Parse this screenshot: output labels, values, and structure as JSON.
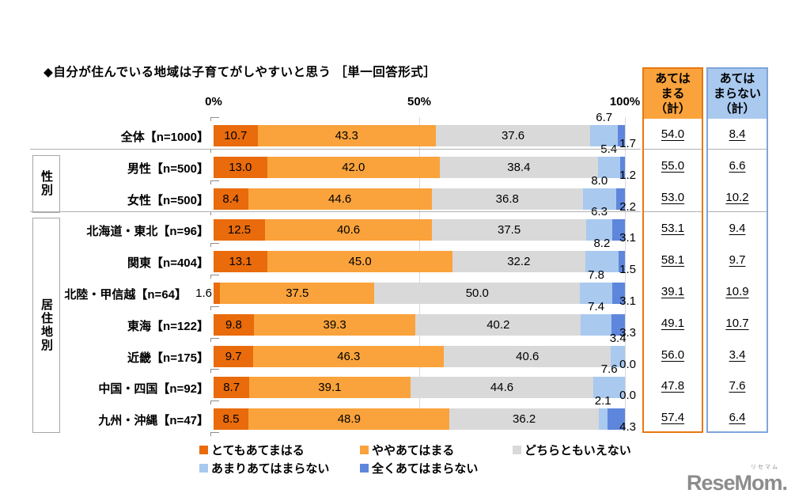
{
  "title": "◆自分が住んでいる地域は子育てがしやすいと思う ［単一回答形式］",
  "axis": {
    "ticks": [
      "0%",
      "50%",
      "100%"
    ]
  },
  "legend": [
    {
      "label": "とてもあてまはる"
    },
    {
      "label": "ややあてはまる"
    },
    {
      "label": "どちらともいえない"
    },
    {
      "label": "あまりあてはまらない"
    },
    {
      "label": "全くあてはまらない"
    }
  ],
  "summary_columns": [
    {
      "title_lines": [
        "あては",
        "まる",
        "（計）"
      ],
      "key": "agree"
    },
    {
      "title_lines": [
        "あては",
        "まらない",
        "（計）"
      ],
      "key": "disagree"
    }
  ],
  "colors": {
    "segments": [
      "#E96B0C",
      "#FAA33C",
      "#D9D9D9",
      "#A9C9EF",
      "#5E86DC"
    ],
    "agree_fill": "#FAA33C",
    "agree_border": "#E8780F",
    "disagree_fill": "#A9C9EF",
    "disagree_border": "#7EA6DB"
  },
  "chart_data": {
    "type": "bar",
    "stacked": true,
    "orientation": "horizontal",
    "unit": "%",
    "xlim": [
      0,
      100
    ],
    "x_axis_ticks": [
      "0%",
      "50%",
      "100%"
    ],
    "series_labels": [
      "とてもあてまはる",
      "ややあてはまる",
      "どちらともいえない",
      "あまりあてはまらない",
      "全くあてはまらない"
    ],
    "groups": [
      {
        "label": "",
        "rows": [
          {
            "label": "全体【n=1000】",
            "values": [
              10.7,
              43.3,
              37.6,
              6.7,
              1.7
            ],
            "totals": {
              "agree": "54.0",
              "disagree": "8.4"
            }
          }
        ]
      },
      {
        "label": "性別",
        "rows": [
          {
            "label": "男性【n=500】",
            "values": [
              13.0,
              42.0,
              38.4,
              5.4,
              1.2
            ],
            "totals": {
              "agree": "55.0",
              "disagree": "6.6"
            }
          },
          {
            "label": "女性【n=500】",
            "values": [
              8.4,
              44.6,
              36.8,
              8.0,
              2.2
            ],
            "totals": {
              "agree": "53.0",
              "disagree": "10.2"
            }
          }
        ]
      },
      {
        "label": "居住地別",
        "rows": [
          {
            "label": "北海道・東北【n=96】",
            "values": [
              12.5,
              40.6,
              37.5,
              6.3,
              3.1
            ],
            "totals": {
              "agree": "53.1",
              "disagree": "9.4"
            }
          },
          {
            "label": "関東【n=404】",
            "values": [
              13.1,
              45.0,
              32.2,
              8.2,
              1.5
            ],
            "totals": {
              "agree": "58.1",
              "disagree": "9.7"
            }
          },
          {
            "label": "北陸・甲信越【n=64】",
            "values": [
              1.6,
              37.5,
              50.0,
              7.8,
              3.1
            ],
            "totals": {
              "agree": "39.1",
              "disagree": "10.9"
            }
          },
          {
            "label": "東海【n=122】",
            "values": [
              9.8,
              39.3,
              40.2,
              7.4,
              3.3
            ],
            "totals": {
              "agree": "49.1",
              "disagree": "10.7"
            }
          },
          {
            "label": "近畿【n=175】",
            "values": [
              9.7,
              46.3,
              40.6,
              3.4,
              0.0
            ],
            "totals": {
              "agree": "56.0",
              "disagree": "3.4"
            }
          },
          {
            "label": "中国・四国【n=92】",
            "values": [
              8.7,
              39.1,
              44.6,
              7.6,
              0.0
            ],
            "totals": {
              "agree": "47.8",
              "disagree": "7.6"
            }
          },
          {
            "label": "九州・沖縄【n=47】",
            "values": [
              8.5,
              48.9,
              36.2,
              2.1,
              4.3
            ],
            "totals": {
              "agree": "57.4",
              "disagree": "6.4"
            }
          }
        ]
      }
    ]
  },
  "footer": {
    "logo": "ReseMom.",
    "logo_ruby": "リセマム"
  }
}
